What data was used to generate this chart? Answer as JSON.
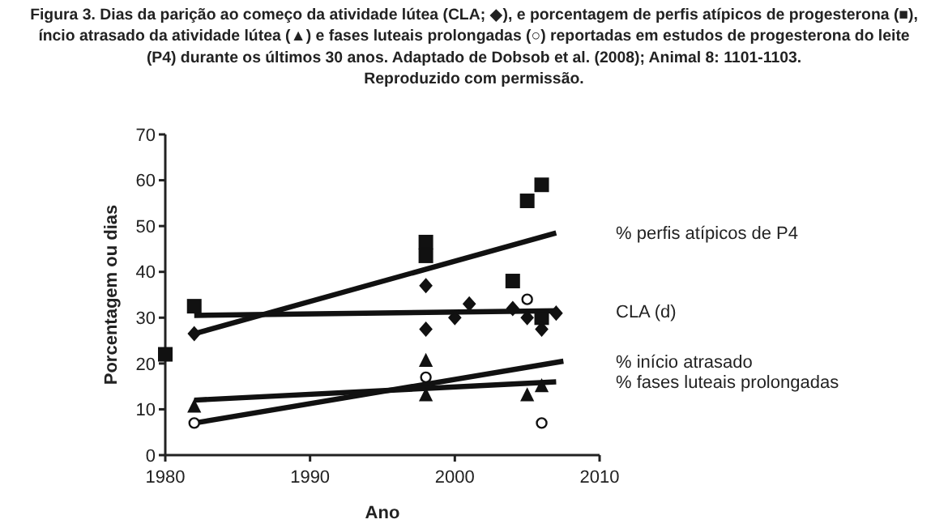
{
  "chart_data": {
    "type": "scatter",
    "title": "Figura 3. Dias da parição ao começo da atividade lútea (CLA; ◆), e porcentagem de perfis atípicos de progesterona (■),\níncio atrasado da atividade lútea (▲) e fases luteais prolongadas (○) reportadas em estudos de progesterona do leite\n(P4) durante os últimos 30 anos. Adaptado de Dobsob et al. (2008); Animal 8: 1101-1103.\nReproduzido com permissão.",
    "xlabel": "Ano",
    "ylabel": "Porcentagem ou dias",
    "xlim": [
      1980,
      2010
    ],
    "xticks": [
      1980,
      1990,
      2000,
      2010
    ],
    "ylim": [
      0,
      70
    ],
    "yticks": [
      0,
      10,
      20,
      30,
      40,
      50,
      60,
      70
    ],
    "grid": false,
    "series": [
      {
        "marker": "square",
        "color": "#111111",
        "x": [
          1980,
          1982,
          1998,
          1998,
          2004,
          2005,
          2006,
          2006
        ],
        "values": [
          22,
          32.5,
          46.5,
          43.5,
          38,
          55.5,
          59,
          30
        ]
      },
      {
        "marker": "diamond",
        "color": "#111111",
        "x": [
          1982,
          1998,
          1998,
          2000,
          2001,
          2004,
          2005,
          2006,
          2007
        ],
        "values": [
          26.5,
          37,
          27.5,
          30,
          33,
          32,
          30,
          27.5,
          31
        ]
      },
      {
        "marker": "triangle",
        "color": "#111111",
        "x": [
          1982,
          1998,
          1998,
          2005,
          2006
        ],
        "values": [
          10.5,
          20.5,
          13,
          13,
          15
        ]
      },
      {
        "marker": "circle",
        "color": "#111111",
        "x": [
          1982,
          1998,
          2005,
          2006
        ],
        "values": [
          7,
          17,
          34,
          7
        ]
      },
      {
        "type": "line",
        "name": "% perfis atípicos de P4",
        "color": "#111111",
        "x": [
          1982,
          2007
        ],
        "values": [
          26.5,
          48.5
        ]
      },
      {
        "type": "line",
        "name": "CLA (d)",
        "color": "#111111",
        "x": [
          1982,
          2007
        ],
        "values": [
          30.5,
          31.5
        ]
      },
      {
        "type": "line",
        "name": "% início atrasado",
        "color": "#111111",
        "x": [
          1982,
          2007.5
        ],
        "values": [
          7,
          20.5
        ]
      },
      {
        "type": "line",
        "name": "% fases luteais prolongadas",
        "color": "#111111",
        "x": [
          1982,
          2007
        ],
        "values": [
          12,
          16
        ]
      }
    ]
  }
}
